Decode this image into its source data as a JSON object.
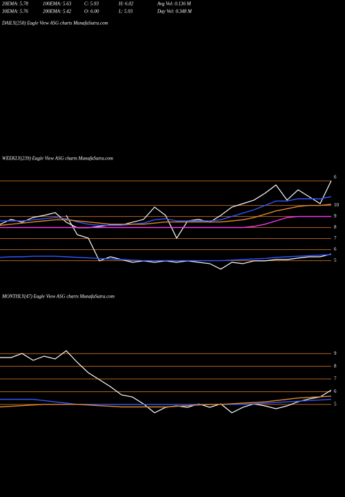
{
  "header": {
    "stats": [
      [
        "20EMA: 5.78",
        "100EMA: 5.63",
        "C: 5.93",
        "H: 6.02",
        "Avg Vol: 0.136  M"
      ],
      [
        "30EMA: 5.76",
        "200EMA: 5.42",
        "O: 6.00",
        "L: 5.93",
        "Day Vol: 0.348 M"
      ]
    ],
    "daily_title": "DAILY(250) Eagle  View  ASG charts MunafaSutra.com"
  },
  "chart_data": [
    {
      "type": "line",
      "title": "WEEKLY(239) Eagle  View  ASG charts MunafaSutra.com",
      "annotation": "6",
      "ylim": [
        4.6,
        12.6
      ],
      "yticks": [
        10,
        9,
        8,
        7,
        6,
        5
      ],
      "grid": true,
      "grid_color": "#b5651d",
      "series": [
        {
          "name": "Price",
          "color": "#ffffff",
          "values": [
            8.29,
            8.73,
            8.48,
            8.91,
            9.1,
            9.35,
            8.48,
            7.98,
            7.98,
            8.1,
            8.23,
            8.23,
            8.48,
            8.73,
            9.85,
            9.1,
            7.04,
            8.6,
            8.73,
            8.48,
            9.1,
            9.85,
            10.16,
            10.48,
            11.1,
            11.85,
            10.48,
            11.41,
            10.79,
            10.16,
            12.23
          ]
        },
        {
          "name": "Price2",
          "color": "#ffffff",
          "values": [
            null,
            null,
            null,
            null,
            null,
            null,
            9.1,
            7.35,
            7.04,
            4.98,
            5.35,
            5.1,
            4.85,
            4.98,
            4.85,
            4.98,
            4.85,
            4.98,
            4.85,
            4.73,
            4.23,
            4.85,
            4.73,
            4.98,
            4.98,
            5.1,
            5.1,
            5.23,
            5.35,
            5.35,
            5.6
          ]
        },
        {
          "name": "EMA-A",
          "color": "#3355ff",
          "values": [
            8.6,
            8.6,
            8.6,
            8.7,
            8.8,
            8.9,
            8.8,
            8.5,
            8.3,
            8.2,
            8.2,
            8.2,
            8.3,
            8.4,
            8.7,
            8.8,
            8.6,
            8.6,
            8.6,
            8.6,
            8.7,
            9.0,
            9.3,
            9.6,
            10.0,
            10.4,
            10.4,
            10.6,
            10.6,
            10.6,
            10.8
          ]
        },
        {
          "name": "EMA-B",
          "color": "#e08a2a",
          "values": [
            8.2,
            8.3,
            8.4,
            8.5,
            8.6,
            8.7,
            8.7,
            8.6,
            8.5,
            8.4,
            8.3,
            8.3,
            8.3,
            8.3,
            8.4,
            8.5,
            8.5,
            8.5,
            8.5,
            8.5,
            8.5,
            8.6,
            8.7,
            8.9,
            9.2,
            9.5,
            9.7,
            9.9,
            10.0,
            10.0,
            10.1
          ]
        },
        {
          "name": "EMA-C",
          "color": "#ff33ff",
          "values": [
            8.0,
            8.0,
            8.0,
            8.0,
            8.0,
            8.0,
            8.0,
            8.0,
            8.0,
            8.0,
            8.0,
            8.0,
            8.0,
            8.0,
            8.0,
            8.0,
            8.0,
            8.0,
            8.0,
            8.0,
            8.0,
            8.0,
            8.0,
            8.1,
            8.3,
            8.6,
            8.9,
            9.0,
            9.0,
            9.0,
            9.0
          ]
        },
        {
          "name": "EMA-D",
          "color": "#3355ff",
          "values": [
            5.3,
            5.35,
            5.35,
            5.4,
            5.4,
            5.4,
            5.35,
            5.3,
            5.25,
            5.2,
            5.15,
            5.1,
            5.05,
            5.0,
            5.0,
            5.0,
            5.0,
            5.0,
            5.0,
            5.0,
            5.0,
            5.05,
            5.1,
            5.15,
            5.2,
            5.3,
            5.35,
            5.4,
            5.45,
            5.5,
            5.55
          ]
        }
      ]
    },
    {
      "type": "line",
      "title": "MONTHLY(47) Eagle  View  ASG charts MunafaSutra.com",
      "ylim": [
        4.3,
        11.3
      ],
      "yticks": [
        9,
        8,
        7,
        6,
        5
      ],
      "grid": true,
      "grid_color": "#b5651d",
      "series": [
        {
          "name": "Price",
          "color": "#ffffff",
          "values": [
            8.69,
            8.69,
            9.01,
            8.47,
            8.8,
            8.58,
            9.23,
            8.31,
            7.49,
            6.95,
            6.4,
            5.75,
            5.58,
            5.04,
            4.34,
            4.77,
            4.88,
            4.77,
            5.04,
            4.77,
            5.04,
            4.34,
            4.77,
            5.04,
            4.88,
            4.66,
            4.88,
            5.21,
            5.43,
            5.59,
            6.13
          ]
        },
        {
          "name": "EMA-A",
          "color": "#3355ff",
          "values": [
            5.4,
            5.4,
            5.4,
            5.4,
            5.3,
            5.2,
            5.1,
            5.0,
            5.0,
            5.0,
            5.0,
            5.0,
            5.0,
            5.0,
            5.0,
            5.0,
            5.0,
            5.0,
            5.0,
            5.0,
            5.0,
            5.0,
            5.0,
            5.05,
            5.1,
            5.15,
            5.2,
            5.25,
            5.3,
            5.35,
            5.4
          ]
        },
        {
          "name": "EMA-B",
          "color": "#e08a2a",
          "values": [
            4.8,
            4.85,
            4.9,
            4.95,
            5.0,
            5.0,
            5.0,
            5.0,
            4.95,
            4.9,
            4.85,
            4.8,
            4.8,
            4.8,
            4.8,
            4.8,
            4.85,
            4.9,
            4.95,
            5.0,
            5.0,
            5.05,
            5.1,
            5.15,
            5.2,
            5.3,
            5.4,
            5.5,
            5.55,
            5.6,
            5.65
          ]
        }
      ]
    }
  ]
}
